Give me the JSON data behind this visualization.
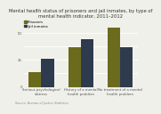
{
  "title": "Mental health status of prisoners and jail inmates, by type of\nmental health indicator, 2011–2012",
  "source": "Source: Bureau of Justice Statistics",
  "categories": [
    "Serious psychological\ndistress",
    "History of a mental\nhealth problem",
    "No treatment of a mental\nhealth problem"
  ],
  "prisoners": [
    14,
    37,
    55
  ],
  "jail_inmates": [
    26,
    44,
    37
  ],
  "color_prisoners": "#6b6b1e",
  "color_jail": "#2e3b4e",
  "legend_labels": [
    "Prisoners",
    "Jail inmates"
  ],
  "ylim": [
    0,
    62
  ],
  "ytick_vals": [
    0,
    12.5,
    25,
    37.5,
    50
  ],
  "ytick_labels": [
    "0",
    "",
    "25",
    "",
    "50"
  ],
  "background_color": "#f0f0eb",
  "title_fontsize": 3.8,
  "tick_fontsize": 2.8,
  "legend_fontsize": 2.8,
  "source_fontsize": 2.4
}
